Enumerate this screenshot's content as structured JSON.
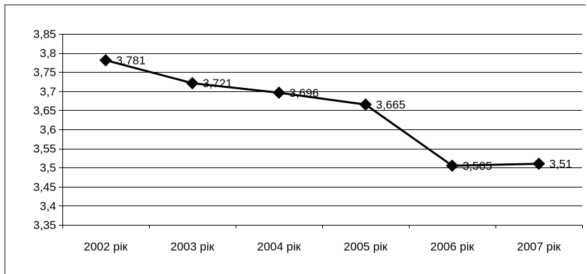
{
  "chart_data": {
    "type": "line",
    "title": "",
    "xlabel": "",
    "ylabel": "",
    "categories": [
      "2002 рік",
      "2003 рік",
      "2004 рік",
      "2005 рік",
      "2006 рік",
      "2007 рік"
    ],
    "series": [
      {
        "values": [
          3.781,
          3.721,
          3.696,
          3.665,
          3.505,
          3.51
        ],
        "data_labels": [
          "3,781",
          "3,721",
          "3,696",
          "3,665",
          "3,505",
          "3,51"
        ],
        "color": "#000000",
        "marker": "diamond"
      }
    ],
    "ylim": [
      3.35,
      3.85
    ],
    "yticks": [
      3.35,
      3.4,
      3.45,
      3.5,
      3.55,
      3.6,
      3.65,
      3.7,
      3.75,
      3.8,
      3.85
    ],
    "ytick_labels": [
      "3,35",
      "3,4",
      "3,45",
      "3,5",
      "3,55",
      "3,6",
      "3,65",
      "3,7",
      "3,75",
      "3,8",
      "3,85"
    ],
    "grid": true,
    "legend": "none"
  }
}
